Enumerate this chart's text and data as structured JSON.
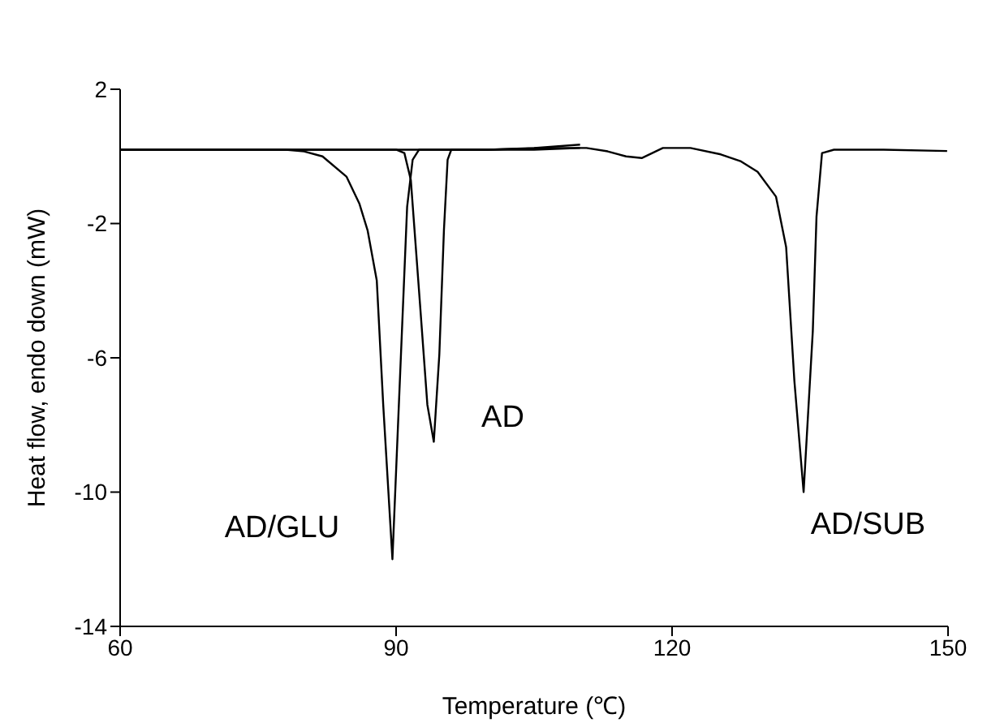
{
  "chart_data": {
    "type": "line",
    "xlabel": "Temperature (℃)",
    "ylabel": "Heat flow, endo down (mW)",
    "xlim": [
      60,
      150
    ],
    "xticks": [
      60,
      90,
      120,
      150
    ],
    "ylim": [
      -14,
      2
    ],
    "yticks": [
      -14,
      -10,
      -6,
      -2,
      2
    ],
    "grid": false,
    "legend": false,
    "marker": "none",
    "line_style": "solid",
    "series": [
      {
        "name": "AD/GLU",
        "color": "#000000",
        "x": [
          60,
          70,
          78,
          80,
          82,
          84.6,
          86,
          86.9,
          87.9,
          88.6,
          89.6,
          90.3,
          91.2,
          91.8,
          92.5,
          96,
          100,
          105,
          110
        ],
        "values": [
          0.2,
          0.2,
          0.2,
          0.15,
          0,
          -0.6,
          -1.4,
          -2.2,
          -3.7,
          -7.4,
          -12,
          -7.4,
          -1.5,
          -0.1,
          0.2,
          0.2,
          0.2,
          0.25,
          0.35
        ]
      },
      {
        "name": "AD",
        "color": "#000000",
        "x": [
          60,
          70,
          80,
          90,
          90.9,
          91.6,
          92.6,
          93.4,
          94.1,
          94.7,
          95.2,
          95.6,
          96,
          100,
          105,
          110
        ],
        "values": [
          0.2,
          0.2,
          0.2,
          0.2,
          0.1,
          -0.7,
          -4.4,
          -7.4,
          -8.5,
          -5.9,
          -2.2,
          -0.1,
          0.2,
          0.2,
          0.2,
          0.25
        ]
      },
      {
        "name": "AD/SUB",
        "color": "#000000",
        "x": [
          60,
          80,
          100,
          106.4,
          110.7,
          113,
          115,
          116.7,
          119,
          122,
          125.3,
          127.5,
          129.3,
          131.3,
          132.4,
          133.3,
          134.3,
          135.3,
          135.7,
          136.3,
          137.6,
          143,
          149.9
        ],
        "values": [
          0.2,
          0.2,
          0.2,
          0.25,
          0.25,
          0.15,
          0,
          -0.05,
          0.25,
          0.25,
          0.06,
          -0.15,
          -0.46,
          -1.2,
          -2.7,
          -6.7,
          -10,
          -5.2,
          -1.8,
          0.1,
          0.2,
          0.2,
          0.16
        ]
      }
    ]
  }
}
